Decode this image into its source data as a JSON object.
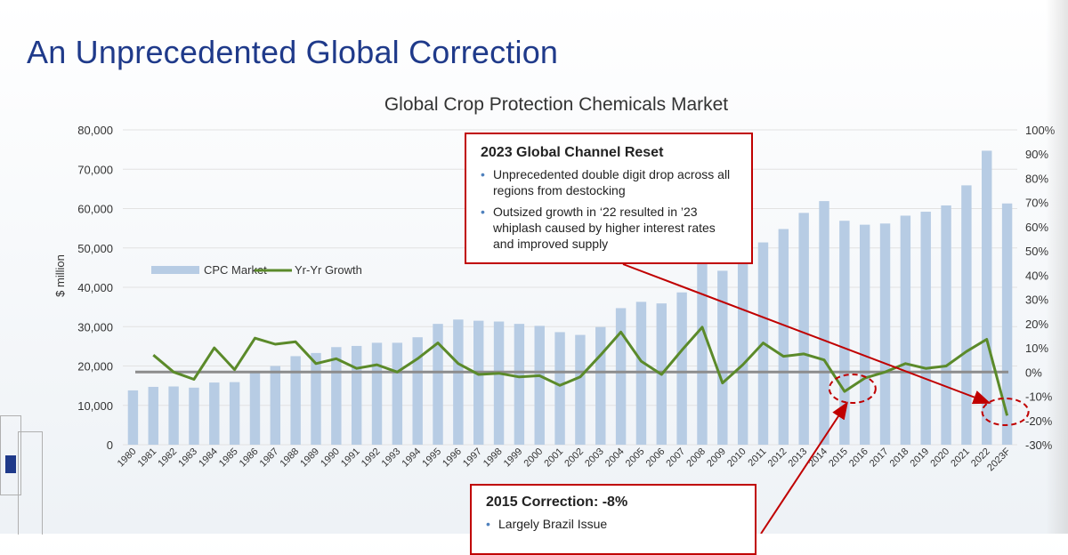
{
  "slide_title": "An Unprecedented Global Correction",
  "chart_data": {
    "type": "bar",
    "title": "Global Crop Protection Chemicals Market",
    "ylabel": "$ million",
    "ylim": [
      0,
      80000
    ],
    "y2lim": [
      -30,
      100
    ],
    "y_ticks": [
      "80,000",
      "70,000",
      "60,000",
      "50,000",
      "40,000",
      "30,000",
      "20,000",
      "10,000",
      "0"
    ],
    "y2_ticks": [
      "100%",
      "90%",
      "80%",
      "70%",
      "60%",
      "50%",
      "40%",
      "30%",
      "20%",
      "10%",
      "0%",
      "-10%",
      "-20%",
      "-30%"
    ],
    "categories": [
      "1980",
      "1981",
      "1982",
      "1983",
      "1984",
      "1985",
      "1986",
      "1987",
      "1988",
      "1989",
      "1990",
      "1991",
      "1992",
      "1993",
      "1994",
      "1995",
      "1996",
      "1997",
      "1998",
      "1999",
      "2000",
      "2001",
      "2002",
      "2003",
      "2004",
      "2005",
      "2006",
      "2007",
      "2008",
      "2009",
      "2010",
      "2011",
      "2012",
      "2013",
      "2014",
      "2015",
      "2016",
      "2017",
      "2018",
      "2019",
      "2020",
      "2021",
      "2022",
      "2023F"
    ],
    "series": [
      {
        "name": "CPC Market",
        "kind": "bar",
        "color": "#b7cce4",
        "values": [
          13800,
          14700,
          14800,
          14500,
          15800,
          15900,
          18300,
          20000,
          22500,
          23300,
          24800,
          25100,
          25900,
          25900,
          27300,
          30700,
          31800,
          31500,
          31300,
          30700,
          30200,
          28600,
          27900,
          29900,
          34700,
          36300,
          35900,
          38700,
          46000,
          44200,
          47000,
          51400,
          54800,
          58900,
          61900,
          56900,
          55900,
          56200,
          58200,
          59200,
          60800,
          65900,
          74700,
          61300
        ]
      },
      {
        "name": "Yr-Yr Growth",
        "kind": "line",
        "axis": "secondary",
        "color": "#5b8a2a",
        "values": [
          null,
          7,
          0,
          -3,
          10,
          1,
          14,
          11.5,
          12.5,
          3.5,
          5.5,
          1.5,
          3,
          0,
          5.5,
          12,
          3.5,
          -1,
          -0.5,
          -2,
          -1.5,
          -5.5,
          -2,
          7,
          16.5,
          4.5,
          -1,
          9,
          18.5,
          -4.5,
          3,
          12,
          6.5,
          7.5,
          5,
          -8,
          -2.5,
          0,
          3.5,
          1.5,
          2.5,
          8.5,
          13.5,
          -18
        ]
      }
    ],
    "reference_line": {
      "value": 0,
      "color": "#8c8c8c"
    },
    "legend": {
      "placement": "left"
    },
    "annotations": [
      {
        "title": "2023 Global Channel Reset",
        "bullets": [
          "Unprecedented double digit drop across all regions from destocking",
          "Outsized growth in ‘22 resulted in ’23 whiplash caused by higher interest rates and improved supply"
        ],
        "target": "2023F"
      },
      {
        "title": "2015 Correction:  -8%",
        "bullets": [
          "Largely Brazil Issue"
        ],
        "target": "2015"
      }
    ],
    "annotation_color": "#c00000"
  }
}
